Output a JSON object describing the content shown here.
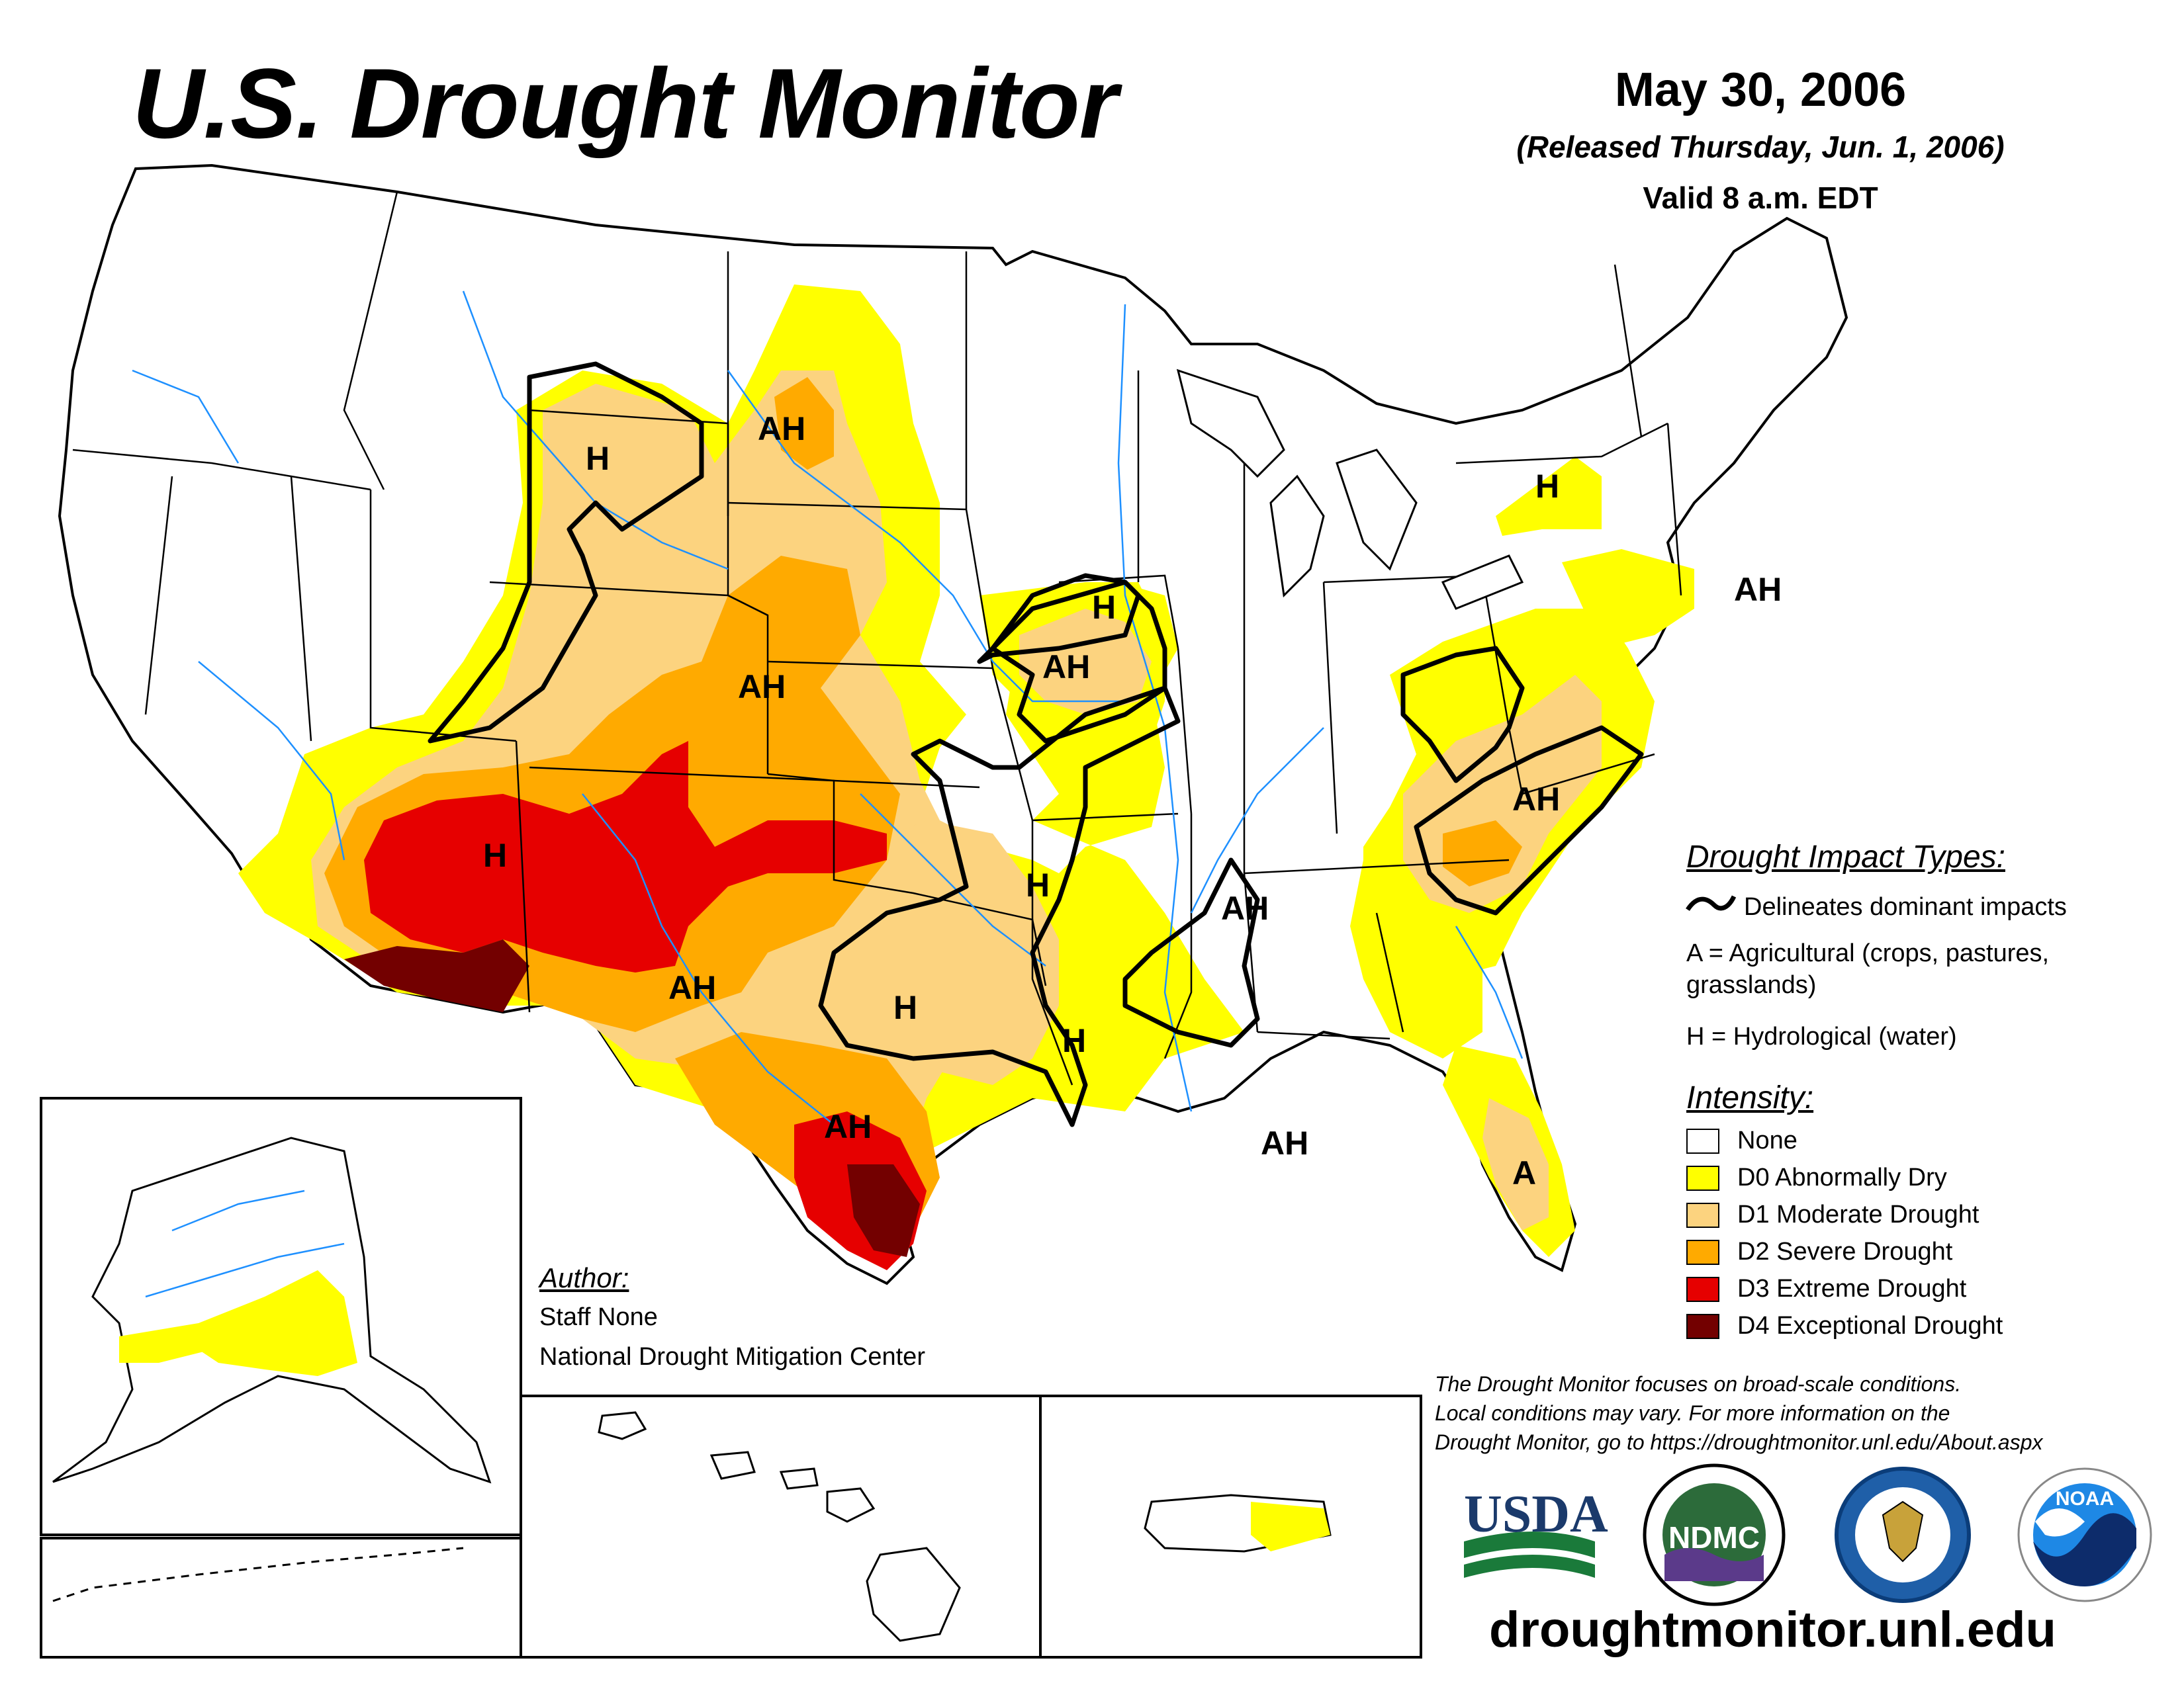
{
  "header": {
    "title": "U.S. Drought Monitor",
    "date": "May 30, 2006",
    "released": "(Released Thursday, Jun. 1, 2006)",
    "valid": "Valid 8 a.m. EDT"
  },
  "impact_types": {
    "title": "Drought Impact Types:",
    "delineates": "Delineates dominant impacts",
    "agricultural": "A = Agricultural (crops, pastures,",
    "agricultural_cont": "grasslands)",
    "hydrological": "H = Hydrological (water)"
  },
  "intensity": {
    "title": "Intensity:",
    "items": [
      {
        "label": "None",
        "color": "#ffffff"
      },
      {
        "label": "D0 Abnormally Dry",
        "color": "#ffff00"
      },
      {
        "label": "D1 Moderate Drought",
        "color": "#fcd37f"
      },
      {
        "label": "D2 Severe Drought",
        "color": "#ffaa00"
      },
      {
        "label": "D3 Extreme Drought",
        "color": "#e60000"
      },
      {
        "label": "D4 Exceptional Drought",
        "color": "#730000"
      }
    ]
  },
  "author": {
    "heading": "Author:",
    "name": "Staff None",
    "org": "National Drought Mitigation Center"
  },
  "disclaimer": {
    "line1": "The Drought Monitor focuses on broad-scale conditions.",
    "line2": "Local conditions may vary. For more information on the",
    "line3": "Drought Monitor, go to https://droughtmonitor.unl.edu/About.aspx"
  },
  "logos": {
    "usda": "USDA",
    "ndmc": "NDMC",
    "noaa": "NOAA"
  },
  "map_labels": [
    "AH",
    "H",
    "AH",
    "H",
    "AH",
    "H",
    "AH",
    "H",
    "AH",
    "H",
    "H",
    "AH",
    "AH",
    "H",
    "AH",
    "AH",
    "A"
  ],
  "url": "droughtmonitor.unl.edu"
}
